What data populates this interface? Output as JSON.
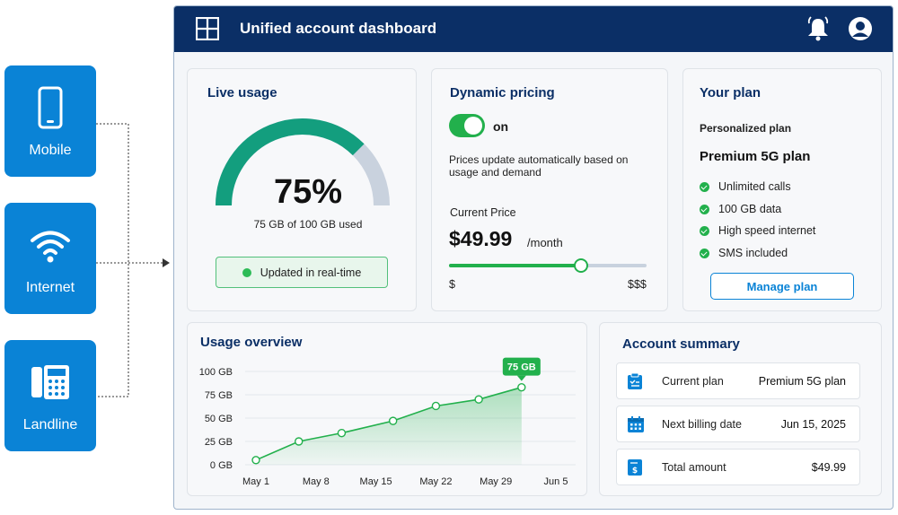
{
  "services": [
    {
      "label": "Mobile",
      "icon": "smartphone-icon"
    },
    {
      "label": "Internet",
      "icon": "wifi-icon"
    },
    {
      "label": "Landline",
      "icon": "desk-phone-icon"
    }
  ],
  "header": {
    "title": "Unified account dashboard",
    "icons": [
      "app-grid-icon",
      "bell-icon",
      "user-icon"
    ]
  },
  "live_usage": {
    "title": "Live usage",
    "percent_text": "75%",
    "percent": 75,
    "used_text": "75 GB of 100 GB used",
    "badge": "Updated in real-time"
  },
  "pricing": {
    "title": "Dynamic pricing",
    "toggle_label": "on",
    "toggle_on": true,
    "description": "Prices update automatically based on usage and demand",
    "current_label": "Current Price",
    "price": "$49.99",
    "unit": "/month",
    "slider_level": 0.67,
    "slider_min": "$",
    "slider_max": "$$$"
  },
  "plan": {
    "title": "Your plan",
    "kind": "Personalized plan",
    "name": "Premium 5G plan",
    "features": [
      "Unlimited calls",
      "100 GB data",
      "High speed internet",
      "SMS included"
    ],
    "button": "Manage plan"
  },
  "chart_data": {
    "type": "area",
    "title": "Usage overview",
    "x": [
      "May 1",
      "May 8",
      "May 15",
      "May 22",
      "May 29",
      "Jun 5"
    ],
    "y_ticks": [
      "100 GB",
      "75 GB",
      "50 GB",
      "25 GB",
      "0 GB"
    ],
    "ylim": [
      0,
      100
    ],
    "points": [
      {
        "x": "May 1",
        "y": 5
      },
      {
        "x": "May 6",
        "y": 25
      },
      {
        "x": "May 11",
        "y": 34
      },
      {
        "x": "May 17",
        "y": 47
      },
      {
        "x": "May 22",
        "y": 63
      },
      {
        "x": "May 27",
        "y": 70
      },
      {
        "x": "Jun 1",
        "y": 83
      }
    ],
    "callout": "75 GB",
    "grid": true,
    "color": "#22b04c"
  },
  "account": {
    "title": "Account summary",
    "rows": [
      {
        "label": "Current plan",
        "value": "Premium 5G plan",
        "icon": "clipboard-icon"
      },
      {
        "label": "Next billing date",
        "value": "Jun 15, 2025",
        "icon": "calendar-icon"
      },
      {
        "label": "Total amount",
        "value": "$49.99",
        "icon": "invoice-icon"
      }
    ]
  },
  "colors": {
    "navy": "#0b2f66",
    "blue": "#0a83d6",
    "green": "#22b04c",
    "teal": "#139e7e"
  }
}
